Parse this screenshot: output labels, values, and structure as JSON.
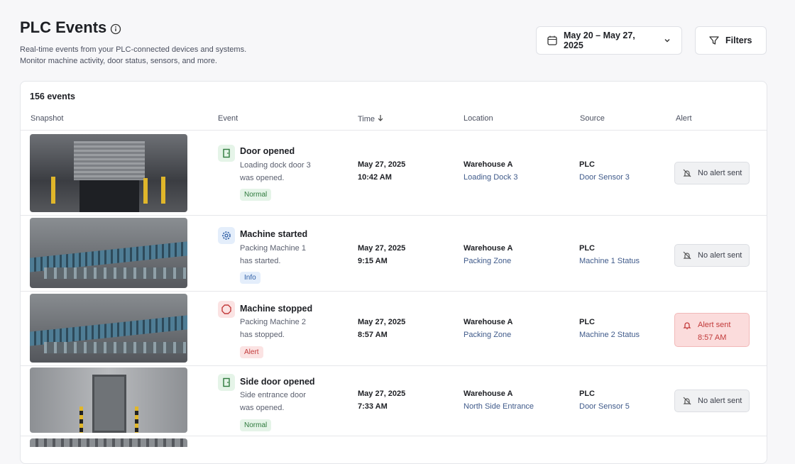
{
  "header": {
    "title": "PLC Events",
    "subtitle": [
      "Real-time events from your PLC-connected devices and systems.",
      "Monitor machine activity, door status, sensors, and more."
    ],
    "date_range": "May 20 – May 27, 2025",
    "filters": "Filters"
  },
  "table": {
    "count": "156 events",
    "columns": [
      "Snapshot",
      "Event",
      "Time",
      "Location",
      "Source",
      "Alert"
    ],
    "rows": [
      {
        "event": "Door opened",
        "description": [
          "Loading dock door 3",
          "was opened."
        ],
        "badge": "Normal",
        "date": "May 27, 2025",
        "time": "10:42 AM",
        "location": "Warehouse A",
        "area": "Loading Dock 3",
        "source": "PLC",
        "device": "Door Sensor 3",
        "alert": [
          "No alert sent"
        ]
      },
      {
        "event": "Machine started",
        "description": [
          "Packing Machine 1",
          "has started."
        ],
        "badge": "Info",
        "date": "May 27, 2025",
        "time": "9:15 AM",
        "location": "Warehouse A",
        "area": "Packing Zone",
        "source": "PLC",
        "device": "Machine 1 Status",
        "alert": [
          "No alert sent"
        ]
      },
      {
        "event": "Machine stopped",
        "description": [
          "Packing Machine 2",
          "has stopped."
        ],
        "badge": "Alert",
        "date": "May 27, 2025",
        "time": "8:57 AM",
        "location": "Warehouse A",
        "area": "Packing Zone",
        "source": "PLC",
        "device": "Machine 2 Status",
        "alert": [
          "Alert sent",
          "8:57 AM"
        ]
      },
      {
        "event": "Side door opened",
        "description": [
          "Side entrance door",
          "was opened."
        ],
        "badge": "Normal",
        "date": "May 27, 2025",
        "time": "7:33 AM",
        "location": "Warehouse A",
        "area": "North Side Entrance",
        "source": "PLC",
        "device": "Door Sensor 5",
        "alert": [
          "No alert sent"
        ]
      }
    ]
  }
}
